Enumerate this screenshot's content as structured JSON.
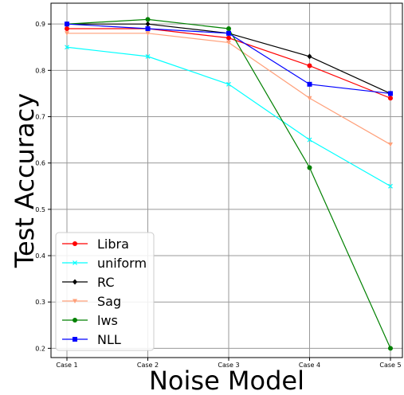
{
  "chart_data": {
    "type": "line",
    "title": "",
    "xlabel": "Noise Model",
    "ylabel": "Test Accuracy",
    "categories": [
      "Case 1",
      "Case 2",
      "Case 3",
      "Case 4",
      "Case 5"
    ],
    "ylim": [
      0.18,
      0.945
    ],
    "yticks": [
      "0.2",
      "0.3",
      "0.4",
      "0.5",
      "0.6",
      "0.7",
      "0.8",
      "0.9"
    ],
    "grid": true,
    "legend_position": "lower-left",
    "series": [
      {
        "name": "Libra",
        "color": "#ff0000",
        "marker": "circle",
        "values": [
          0.89,
          0.89,
          0.87,
          0.81,
          0.74
        ]
      },
      {
        "name": "uniform",
        "color": "#00ffff",
        "marker": "x",
        "values": [
          0.85,
          0.83,
          0.77,
          0.65,
          0.55
        ]
      },
      {
        "name": "RC",
        "color": "#000000",
        "marker": "diamond",
        "values": [
          0.9,
          0.9,
          0.88,
          0.83,
          0.75
        ]
      },
      {
        "name": "Sag",
        "color": "#ffa07a",
        "marker": "triangle-down",
        "values": [
          0.88,
          0.88,
          0.86,
          0.74,
          0.64
        ]
      },
      {
        "name": "lws",
        "color": "#008000",
        "marker": "circle",
        "values": [
          0.9,
          0.91,
          0.89,
          0.59,
          0.2
        ]
      },
      {
        "name": "NLL",
        "color": "#0000ff",
        "marker": "square",
        "values": [
          0.9,
          0.89,
          0.88,
          0.77,
          0.75
        ]
      }
    ]
  }
}
